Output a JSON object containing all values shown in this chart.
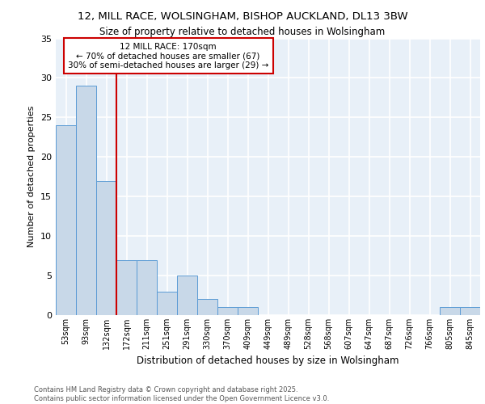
{
  "title1": "12, MILL RACE, WOLSINGHAM, BISHOP AUCKLAND, DL13 3BW",
  "title2": "Size of property relative to detached houses in Wolsingham",
  "xlabel": "Distribution of detached houses by size in Wolsingham",
  "ylabel": "Number of detached properties",
  "categories": [
    "53sqm",
    "93sqm",
    "132sqm",
    "172sqm",
    "211sqm",
    "251sqm",
    "291sqm",
    "330sqm",
    "370sqm",
    "409sqm",
    "449sqm",
    "489sqm",
    "528sqm",
    "568sqm",
    "607sqm",
    "647sqm",
    "687sqm",
    "726sqm",
    "766sqm",
    "805sqm",
    "845sqm"
  ],
  "values": [
    24,
    29,
    17,
    7,
    7,
    3,
    5,
    2,
    1,
    1,
    0,
    0,
    0,
    0,
    0,
    0,
    0,
    0,
    0,
    1,
    1
  ],
  "bar_color": "#c8d8e8",
  "bar_edge_color": "#5b9bd5",
  "reference_line_x": 2.5,
  "annotation_line1": "12 MILL RACE: 170sqm",
  "annotation_line2": "← 70% of detached houses are smaller (67)",
  "annotation_line3": "30% of semi-detached houses are larger (29) →",
  "annotation_box_color": "#cc0000",
  "ylim": [
    0,
    35
  ],
  "yticks": [
    0,
    5,
    10,
    15,
    20,
    25,
    30,
    35
  ],
  "bg_color": "#e8f0f8",
  "grid_color": "#ffffff",
  "footer_line1": "Contains HM Land Registry data © Crown copyright and database right 2025.",
  "footer_line2": "Contains public sector information licensed under the Open Government Licence v3.0."
}
